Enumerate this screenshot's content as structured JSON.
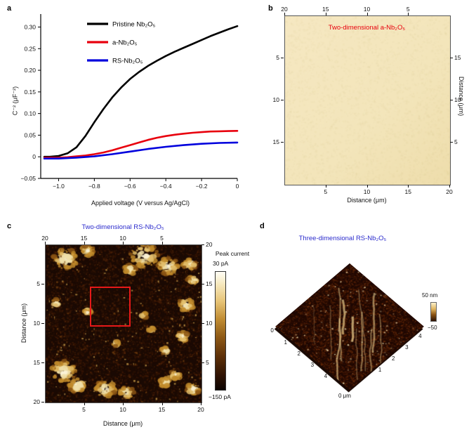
{
  "figure": {
    "background": "#ffffff"
  },
  "chart_data": [
    {
      "panel_label": "a",
      "type": "line",
      "xlabel": "Applied voltage (V versus Ag/AgCl)",
      "ylabel": "C⁻² (μF⁻²)",
      "xlim": [
        -1.1,
        0
      ],
      "ylim": [
        -0.05,
        0.33
      ],
      "xticks": {
        "values": [
          -1.0,
          -0.8,
          -0.6,
          -0.4,
          -0.2,
          0
        ],
        "labels": [
          "−1.0",
          "−0.8",
          "−0.6",
          "−0.4",
          "−0.2",
          "0"
        ]
      },
      "yticks": {
        "values": [
          -0.05,
          0,
          0.05,
          0.1,
          0.15,
          0.2,
          0.25,
          0.3
        ],
        "labels": [
          "−0.05",
          "0",
          "0.05",
          "0.10",
          "0.15",
          "0.20",
          "0.25",
          "0.30"
        ]
      },
      "legend_position": "top-center",
      "grid": false,
      "series": [
        {
          "name": "Pristine Nb₂O₅",
          "color": "#000000",
          "x": [
            -1.08,
            -1.05,
            -1.0,
            -0.95,
            -0.9,
            -0.85,
            -0.8,
            -0.75,
            -0.7,
            -0.65,
            -0.6,
            -0.55,
            -0.5,
            -0.45,
            -0.4,
            -0.35,
            -0.3,
            -0.25,
            -0.2,
            -0.15,
            -0.1,
            -0.05,
            0
          ],
          "y": [
            0.0,
            0.0,
            0.002,
            0.008,
            0.022,
            0.048,
            0.08,
            0.11,
            0.137,
            0.16,
            0.18,
            0.196,
            0.21,
            0.222,
            0.233,
            0.243,
            0.252,
            0.261,
            0.27,
            0.279,
            0.287,
            0.295,
            0.302
          ]
        },
        {
          "name": "a-Nb₂O₅",
          "color": "#e8000d",
          "x": [
            -1.08,
            -1.0,
            -0.95,
            -0.9,
            -0.85,
            -0.8,
            -0.75,
            -0.7,
            -0.65,
            -0.6,
            -0.55,
            -0.5,
            -0.45,
            -0.4,
            -0.35,
            -0.3,
            -0.25,
            -0.2,
            -0.15,
            -0.1,
            -0.05,
            0
          ],
          "y": [
            -0.002,
            -0.002,
            -0.001,
            0.001,
            0.003,
            0.006,
            0.01,
            0.015,
            0.021,
            0.027,
            0.033,
            0.039,
            0.044,
            0.048,
            0.051,
            0.0535,
            0.0555,
            0.057,
            0.0585,
            0.059,
            0.0595,
            0.06
          ]
        },
        {
          "name": "RS-Nb₂O₅",
          "color": "#0000dd",
          "x": [
            -1.08,
            -1.0,
            -0.9,
            -0.8,
            -0.7,
            -0.6,
            -0.5,
            -0.4,
            -0.3,
            -0.2,
            -0.1,
            0
          ],
          "y": [
            -0.004,
            -0.004,
            -0.002,
            0.001,
            0.006,
            0.012,
            0.018,
            0.023,
            0.027,
            0.03,
            0.032,
            0.033
          ]
        }
      ]
    },
    {
      "panel_label": "b",
      "type": "heatmap",
      "title": "Two-dimensional a-Nb₂O₅",
      "title_color": "#e8000d",
      "xlabel_bottom": "Distance (μm)",
      "ylabel_right": "Distance (μm)",
      "axis_max": 20,
      "xticks_top": [
        "20",
        "15",
        "10",
        "5"
      ],
      "xticks_bottom": [
        "5",
        "10",
        "15",
        "20"
      ],
      "yticks_left": [
        "5",
        "10",
        "15"
      ],
      "yticks_right": [
        "15",
        "10",
        "5"
      ],
      "base_color": "#f3e5ba"
    },
    {
      "panel_label": "c",
      "type": "heatmap",
      "title": "Two-dimensional RS-Nb₂O₅",
      "title_color": "#2b2bcc",
      "xlabel_bottom": "Distance (μm)",
      "ylabel_left": "Distance (μm)",
      "axis_max": 20,
      "xticks_top": [
        "20",
        "15",
        "10",
        "5"
      ],
      "xticks_bottom": [
        "5",
        "10",
        "15",
        "20"
      ],
      "yticks_left": [
        "5",
        "10",
        "15",
        "20"
      ],
      "yticks_right": [
        "20",
        "15",
        "10",
        "5"
      ],
      "colorbar": {
        "label": "Peak current",
        "tick_max": "30 pA",
        "tick_min": "−150 pA"
      },
      "annotation_color": "#e61919"
    },
    {
      "panel_label": "d",
      "type": "surface3d",
      "title": "Three-dimensional RS-Nb₂O₅",
      "title_color": "#2b2bcc",
      "left_axis_ticks": [
        "0",
        "1",
        "2",
        "3",
        "4"
      ],
      "right_axis_ticks": [
        "1",
        "2",
        "3",
        "4"
      ],
      "origin_label": "0 μm",
      "scale": {
        "tick_max": "50 nm",
        "tick_min": "−50"
      }
    }
  ]
}
